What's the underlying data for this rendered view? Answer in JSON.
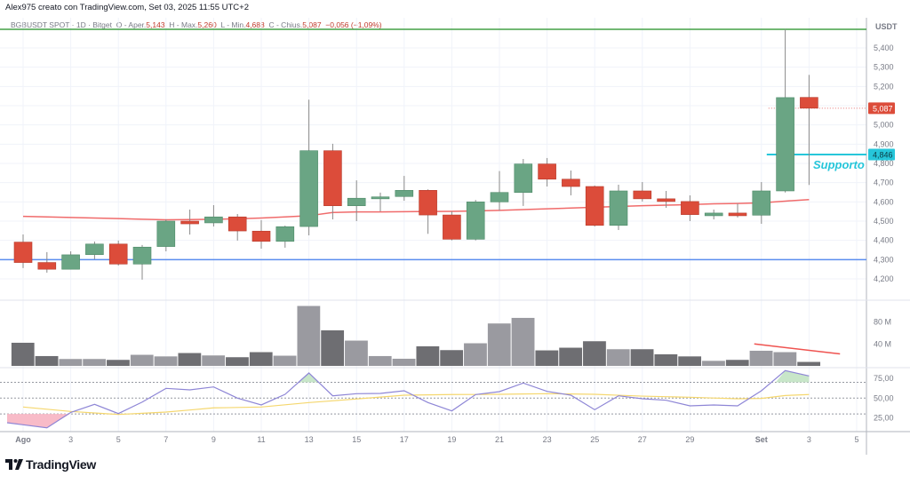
{
  "header": {
    "author_line": "Alex975 creato con TradingView.com, Set 03, 2025 11:55 UTC+2",
    "symbol": "BGBUSDT SPOT · 1D · Bitget",
    "open_label": "O - Aper.",
    "open": "5,143",
    "high_label": "H - Max.",
    "high": "5,260",
    "low_label": "L - Min.",
    "low": "4,688",
    "close_label": "C - Chius.",
    "close": "5,087",
    "change": "−0,056 (−1,09%)"
  },
  "price_axis": {
    "currency": "USDT",
    "ticks": [
      "5,400",
      "5,300",
      "5,200",
      "5,000",
      "4,900",
      "4,800",
      "4,700",
      "4,600",
      "4,500",
      "4,400",
      "4,300",
      "4,200"
    ],
    "last_price_label": "5,087",
    "support_label": "4,846"
  },
  "annotations": {
    "support_text": "Supporto",
    "support_level": 4846,
    "horizontal_lines": [
      {
        "price": 5497,
        "color": "#43a047"
      },
      {
        "price": 4300,
        "color": "#5b8def"
      }
    ]
  },
  "volume_axis": {
    "ticks": [
      "80 M",
      "40 M"
    ]
  },
  "rsi_axis": {
    "ticks": [
      "75,00",
      "50,00",
      "25,00"
    ]
  },
  "time_axis": {
    "labels": [
      "Ago",
      "3",
      "5",
      "7",
      "9",
      "11",
      "13",
      "15",
      "17",
      "19",
      "21",
      "23",
      "25",
      "27",
      "29",
      "Set",
      "3",
      "5"
    ]
  },
  "colors": {
    "up": "#6aa584",
    "down": "#dc4c3a",
    "ma": "#f06b6b",
    "rsi": "#8e86d6",
    "rsi_ma": "#f5d76e",
    "support": "#26c6da",
    "vol_up": "#9a9aa0",
    "vol_down": "#6e6e72"
  },
  "chart_data": {
    "type": "candlestick",
    "dates": [
      "Aug 1",
      "Aug 2",
      "Aug 3",
      "Aug 4",
      "Aug 5",
      "Aug 6",
      "Aug 7",
      "Aug 8",
      "Aug 9",
      "Aug 10",
      "Aug 11",
      "Aug 12",
      "Aug 13",
      "Aug 14",
      "Aug 15",
      "Aug 16",
      "Aug 17",
      "Aug 18",
      "Aug 19",
      "Aug 20",
      "Aug 21",
      "Aug 22",
      "Aug 23",
      "Aug 24",
      "Aug 25",
      "Aug 26",
      "Aug 27",
      "Aug 28",
      "Aug 29",
      "Aug 30",
      "Aug 31",
      "Sep 1",
      "Sep 2",
      "Sep 3"
    ],
    "ohlc": [
      [
        4391,
        4431,
        4256,
        4285
      ],
      [
        4285,
        4339,
        4232,
        4250
      ],
      [
        4250,
        4343,
        4250,
        4325
      ],
      [
        4326,
        4394,
        4302,
        4381
      ],
      [
        4381,
        4399,
        4269,
        4277
      ],
      [
        4277,
        4376,
        4196,
        4365
      ],
      [
        4368,
        4509,
        4343,
        4500
      ],
      [
        4500,
        4560,
        4430,
        4486
      ],
      [
        4491,
        4583,
        4472,
        4522
      ],
      [
        4522,
        4537,
        4399,
        4449
      ],
      [
        4448,
        4505,
        4357,
        4395
      ],
      [
        4395,
        4477,
        4362,
        4471
      ],
      [
        4472,
        5131,
        4426,
        4866
      ],
      [
        4866,
        4902,
        4509,
        4580
      ],
      [
        4580,
        4712,
        4500,
        4619
      ],
      [
        4616,
        4648,
        4551,
        4626
      ],
      [
        4628,
        4735,
        4606,
        4660
      ],
      [
        4660,
        4665,
        4434,
        4532
      ],
      [
        4532,
        4551,
        4400,
        4406
      ],
      [
        4406,
        4610,
        4400,
        4600
      ],
      [
        4600,
        4760,
        4555,
        4649
      ],
      [
        4649,
        4823,
        4579,
        4797
      ],
      [
        4797,
        4828,
        4680,
        4718
      ],
      [
        4718,
        4763,
        4634,
        4680
      ],
      [
        4680,
        4685,
        4472,
        4478
      ],
      [
        4478,
        4689,
        4454,
        4657
      ],
      [
        4657,
        4703,
        4602,
        4616
      ],
      [
        4616,
        4657,
        4569,
        4602
      ],
      [
        4602,
        4634,
        4500,
        4534
      ],
      [
        4528,
        4560,
        4509,
        4542
      ],
      [
        4542,
        4592,
        4519,
        4528
      ],
      [
        4531,
        4703,
        4486,
        4657
      ],
      [
        4657,
        5498,
        4649,
        5142
      ],
      [
        5143,
        5260,
        4688,
        5087
      ]
    ],
    "ma": [
      4525,
      4522,
      4519,
      4516,
      4513,
      4510,
      4507,
      4508,
      4510,
      4512,
      4516,
      4522,
      4528,
      4545,
      4548,
      4548,
      4549,
      4550,
      4551,
      4553,
      4556,
      4560,
      4564,
      4568,
      4572,
      4576,
      4580,
      4583,
      4586,
      4590,
      4592,
      4595,
      4604,
      4612
    ],
    "volume_millions": [
      42.6,
      18.6,
      13.3,
      13.3,
      11.7,
      20.8,
      18,
      24,
      19.7,
      16.5,
      25.6,
      19.2,
      108.8,
      65,
      46.4,
      18.6,
      13.8,
      36.2,
      29.3,
      41.6,
      77.3,
      87.4,
      28.8,
      33.6,
      45.3,
      30.9,
      30.9,
      21.8,
      18,
      10,
      11.7,
      28.2,
      25.6,
      8
    ],
    "rsi": [
      16.4,
      12.6,
      32,
      42.2,
      30.5,
      45,
      62.3,
      60.4,
      64.1,
      50,
      41.4,
      54.8,
      81.7,
      52.9,
      55.6,
      55.9,
      59.3,
      44.4,
      33.9,
      54.5,
      58.2,
      69,
      58.5,
      53.7,
      35.4,
      52.9,
      49.2,
      47.3,
      40.3,
      41.4,
      40.3,
      59.3,
      84.7,
      78
    ],
    "rsi_ma": [
      38.8,
      36,
      33.2,
      31.3,
      29.4,
      30.9,
      32.4,
      35,
      37.7,
      38.2,
      38.8,
      41.6,
      44.4,
      46.6,
      48.9,
      51.3,
      53.7,
      54.1,
      54.5,
      54.6,
      54.8,
      55.2,
      55.6,
      55.2,
      54.8,
      53.6,
      52.5,
      51.8,
      51.1,
      50.1,
      49.2,
      49.6,
      53.3,
      54.5
    ],
    "rsi_levels": [
      70,
      50,
      30
    ],
    "price_range": [
      4200,
      5400
    ],
    "volume_trendline_millions": [
      40,
      22
    ]
  }
}
